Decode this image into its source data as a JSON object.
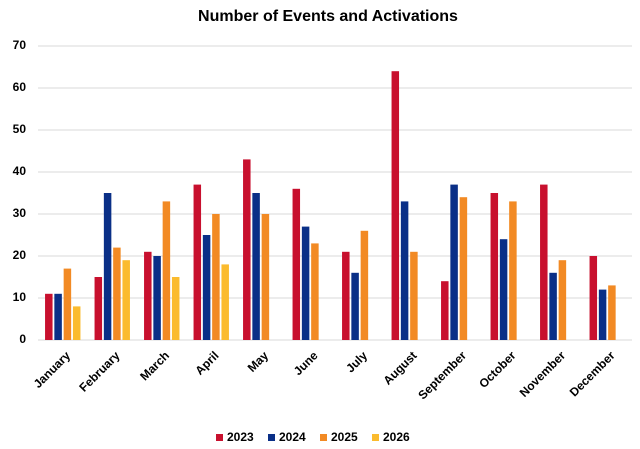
{
  "chart_data": {
    "type": "bar",
    "title": "Number of Events and Activations",
    "categories": [
      "January",
      "February",
      "March",
      "April",
      "May",
      "June",
      "July",
      "August",
      "September",
      "October",
      "November",
      "December"
    ],
    "series": [
      {
        "name": "2023",
        "color": "#c8102e",
        "values": [
          11,
          15,
          21,
          37,
          43,
          36,
          21,
          64,
          14,
          35,
          37,
          20
        ]
      },
      {
        "name": "2024",
        "color": "#0a2f87",
        "values": [
          11,
          35,
          20,
          25,
          35,
          27,
          16,
          33,
          37,
          24,
          16,
          12
        ]
      },
      {
        "name": "2025",
        "color": "#f28a24",
        "values": [
          17,
          22,
          33,
          30,
          30,
          23,
          26,
          21,
          34,
          33,
          19,
          13
        ]
      },
      {
        "name": "2026",
        "color": "#fbbb2e",
        "values": [
          8,
          19,
          15,
          18,
          null,
          null,
          null,
          null,
          null,
          null,
          null,
          null
        ]
      }
    ],
    "ylim": [
      0,
      70
    ],
    "yticks": [
      0,
      10,
      20,
      30,
      40,
      50,
      60,
      70
    ],
    "grid": true,
    "legend": "bottom"
  }
}
